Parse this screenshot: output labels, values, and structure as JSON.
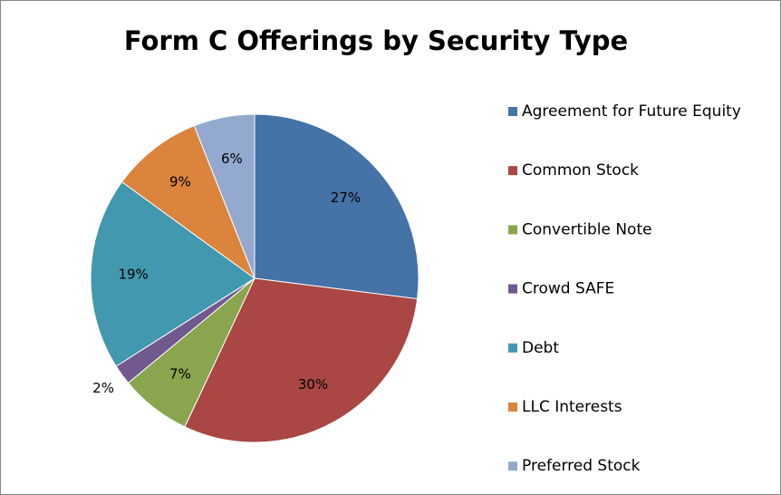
{
  "chart_data": {
    "type": "pie",
    "title": "Form C Offerings by Security Type",
    "categories": [
      "Agreement for Future Equity",
      "Common Stock",
      "Convertible Note",
      "Crowd SAFE",
      "Debt",
      "LLC Interests",
      "Preferred Stock"
    ],
    "values": [
      27,
      30,
      7,
      2,
      19,
      9,
      6
    ],
    "value_labels": [
      "27%",
      "30%",
      "7%",
      "2%",
      "19%",
      "9%",
      "6%"
    ],
    "colors": [
      "#4572a7",
      "#aa4643",
      "#89a54e",
      "#71588f",
      "#4198af",
      "#db843d",
      "#93a9cf"
    ],
    "legend": "right"
  }
}
